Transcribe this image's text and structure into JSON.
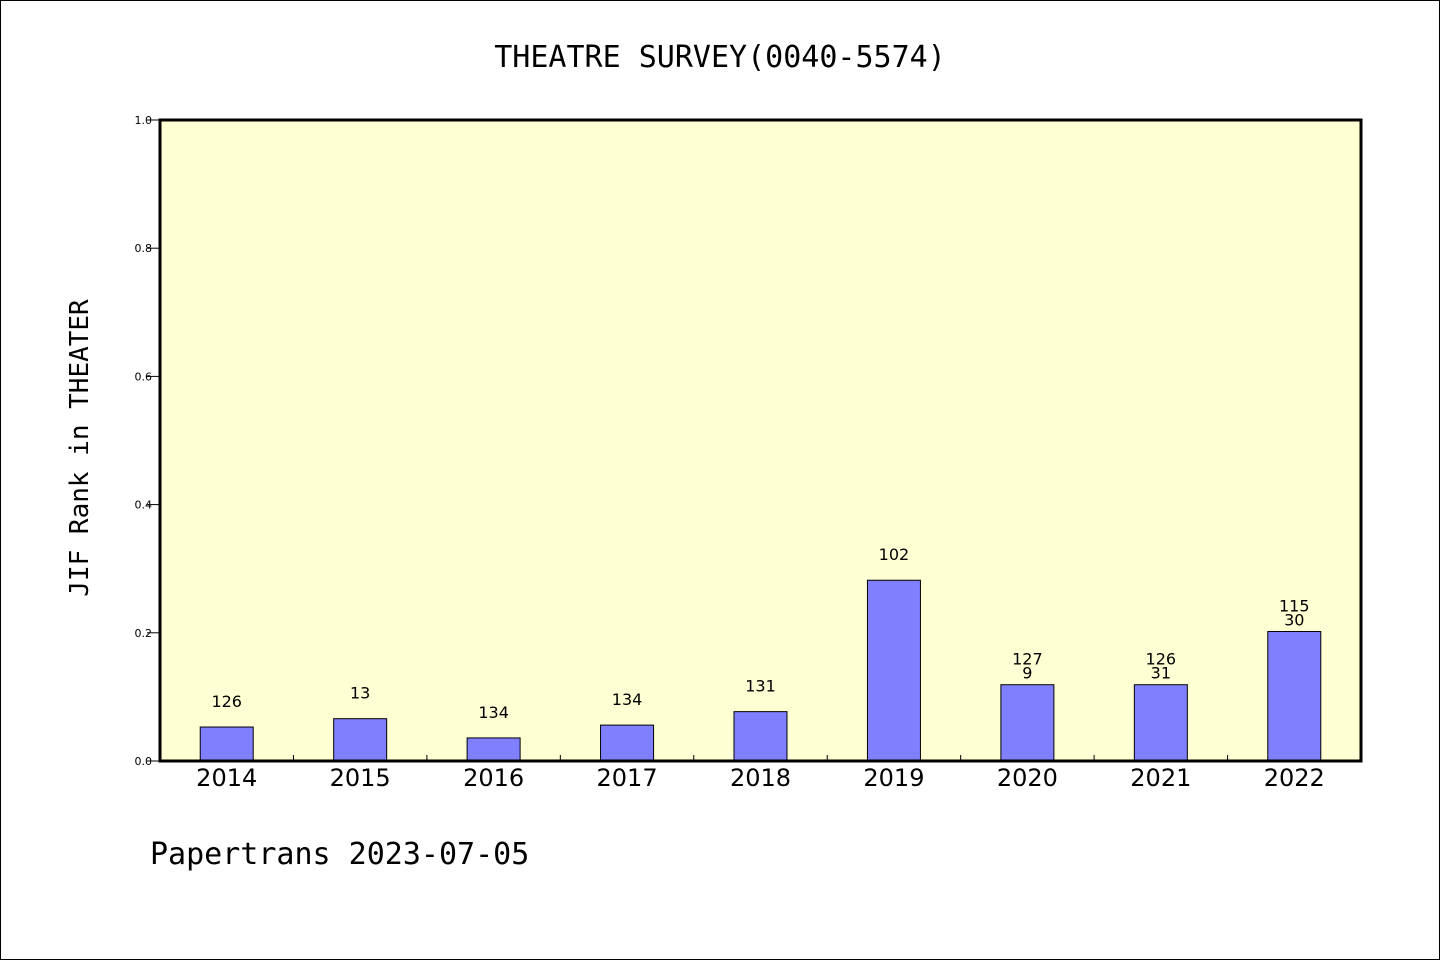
{
  "footer": "Papertrans 2023-07-05",
  "colors": {
    "plot_background": "#ffffd4",
    "bar_fill": "#8080ff",
    "bar_stroke": "#000000",
    "axis": "#000000"
  },
  "chart_data": {
    "type": "bar",
    "title": "THEATRE SURVEY(0040-5574)",
    "xlabel": "",
    "ylabel": "JIF Rank in THEATER",
    "ylim": [
      0,
      1.0
    ],
    "yticks": [
      "0.0",
      "0.2",
      "0.4",
      "0.6",
      "0.8",
      "1.0"
    ],
    "grid": false,
    "legend": "none",
    "categories": [
      "2014",
      "2015",
      "2016",
      "2017",
      "2018",
      "2019",
      "2020",
      "2021",
      "2022"
    ],
    "values": [
      0.053,
      0.066,
      0.036,
      0.056,
      0.077,
      0.282,
      0.119,
      0.119,
      0.202
    ],
    "bar_labels": [
      [
        "126"
      ],
      [
        "13"
      ],
      [
        "134"
      ],
      [
        "134"
      ],
      [
        "131"
      ],
      [
        "102"
      ],
      [
        "127",
        "9"
      ],
      [
        "126",
        "31"
      ],
      [
        "115",
        "30"
      ]
    ]
  }
}
